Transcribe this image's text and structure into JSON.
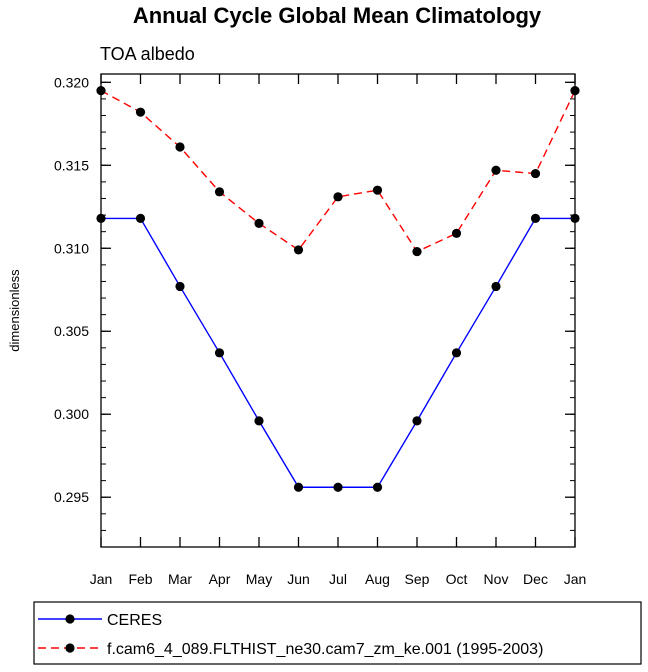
{
  "chart_data": {
    "type": "line",
    "title": "Annual Cycle Global Mean Climatology",
    "subtitle": "TOA albedo",
    "xlabel": "",
    "ylabel": "dimensionless",
    "categories": [
      "Jan",
      "Feb",
      "Mar",
      "Apr",
      "May",
      "Jun",
      "Jul",
      "Aug",
      "Sep",
      "Oct",
      "Nov",
      "Dec",
      "Jan"
    ],
    "ylim": [
      0.292,
      0.3205
    ],
    "yticks": [
      0.295,
      0.3,
      0.305,
      0.31,
      0.315,
      0.32
    ],
    "ytick_labels": [
      "0.295",
      "0.300",
      "0.305",
      "0.310",
      "0.315",
      "0.320"
    ],
    "grid": false,
    "legend_position": "bottom",
    "series": [
      {
        "name": "CERES",
        "color": "#0000ff",
        "dash": "solid",
        "marker": "filled-circle",
        "values": [
          0.3118,
          0.3118,
          0.3077,
          0.3037,
          0.2996,
          0.2956,
          0.2956,
          0.2956,
          0.2996,
          0.3037,
          0.3077,
          0.3118,
          0.3118
        ]
      },
      {
        "name": "f.cam6_4_089.FLTHIST_ne30.cam7_zm_ke.001 (1995-2003)",
        "color": "#ff0000",
        "dash": "dashed",
        "marker": "filled-circle",
        "values": [
          0.3195,
          0.3182,
          0.3161,
          0.3134,
          0.3115,
          0.3099,
          0.3131,
          0.3135,
          0.3098,
          0.3109,
          0.3147,
          0.3145,
          0.3195
        ]
      }
    ]
  }
}
